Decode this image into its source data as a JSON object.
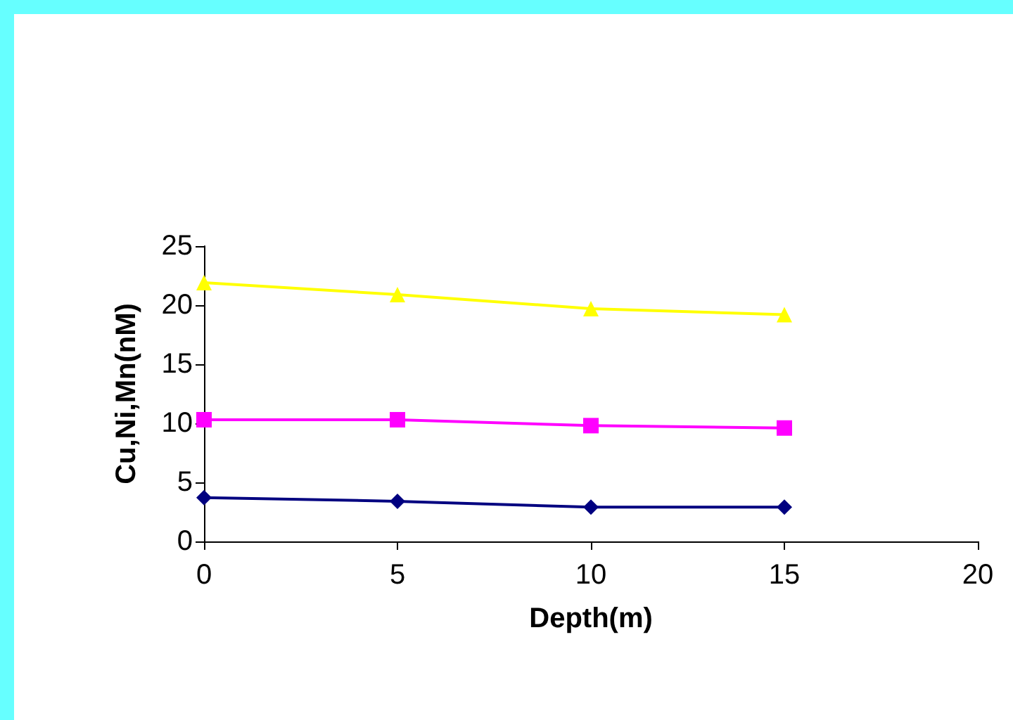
{
  "chart_data": {
    "type": "line",
    "xlabel": "Depth(m)",
    "ylabel": "Cu,Ni,Mn(nM)",
    "xlim": [
      0,
      20
    ],
    "xticks": [
      0,
      5,
      10,
      15,
      20
    ],
    "ylim": [
      0,
      25
    ],
    "yticks": [
      0,
      5,
      10,
      15,
      20,
      25
    ],
    "grid": false,
    "series": [
      {
        "color": "#ffff00",
        "marker": "triangle",
        "x": [
          0,
          5,
          10,
          15
        ],
        "values": [
          21.9,
          20.9,
          19.7,
          19.2
        ]
      },
      {
        "color": "#ff00ff",
        "marker": "square",
        "x": [
          0,
          5,
          10,
          15
        ],
        "values": [
          10.3,
          10.3,
          9.8,
          9.6
        ]
      },
      {
        "color": "#000080",
        "marker": "diamond",
        "x": [
          0,
          5,
          10,
          15
        ],
        "values": [
          3.7,
          3.4,
          2.9,
          2.9
        ]
      }
    ]
  }
}
